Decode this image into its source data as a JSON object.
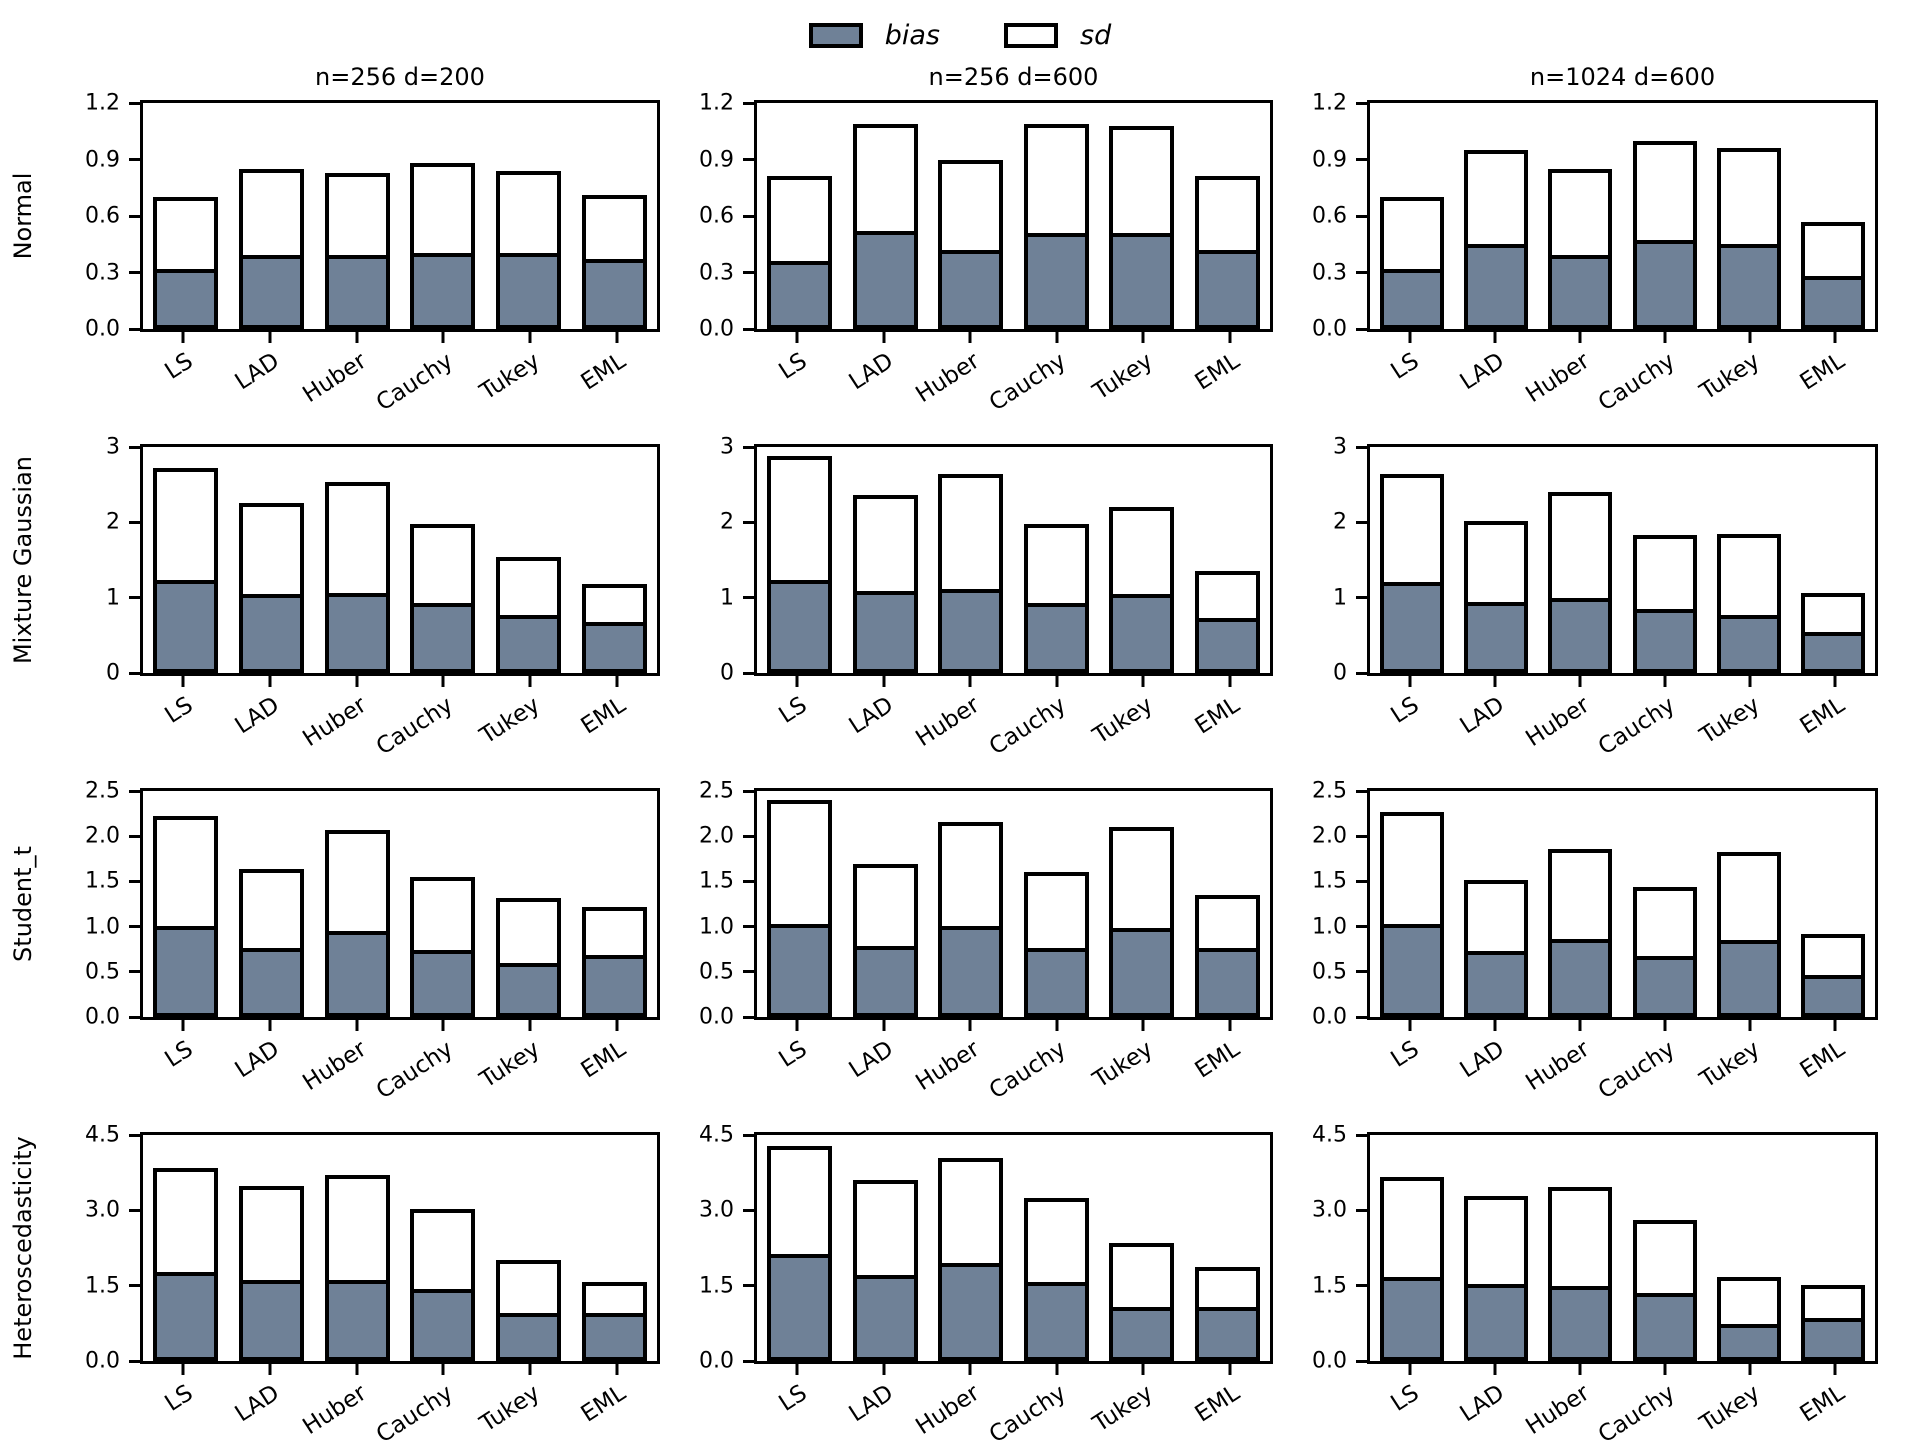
{
  "colors": {
    "bias_fill": "#6f8197",
    "sd_fill": "#ffffff",
    "edge": "#000000"
  },
  "legend": {
    "items": [
      {
        "label": "bias",
        "swatch": "bias"
      },
      {
        "label": "sd",
        "swatch": "sd"
      }
    ]
  },
  "chart_data": {
    "type": "bar",
    "stacked": true,
    "grid": "4 rows x 3 cols of stacked bar subplots",
    "legend_position": "top center",
    "categories": [
      "LS",
      "LAD",
      "Huber",
      "Cauchy",
      "Tukey",
      "EML"
    ],
    "col_titles": [
      "n=256 d=200",
      "n=256 d=600",
      "n=1024 d=600"
    ],
    "row_labels": [
      "Normal",
      "Mixture Gaussian",
      "Student_t",
      "Heteroscedasticity"
    ],
    "rows": [
      {
        "label": "Normal",
        "ylim": [
          0,
          1.2
        ],
        "yticks": [
          "0.0",
          "0.3",
          "0.6",
          "0.9",
          "1.2"
        ],
        "subplots": [
          {
            "col_title": "n=256 d=200",
            "bias": [
              0.3,
              0.37,
              0.37,
              0.38,
              0.38,
              0.35
            ],
            "sd": [
              0.4,
              0.48,
              0.46,
              0.5,
              0.46,
              0.36
            ]
          },
          {
            "col_title": "n=256 d=600",
            "bias": [
              0.34,
              0.5,
              0.4,
              0.49,
              0.49,
              0.4
            ],
            "sd": [
              0.47,
              0.59,
              0.5,
              0.6,
              0.59,
              0.41
            ]
          },
          {
            "col_title": "n=1024 d=600",
            "bias": [
              0.3,
              0.43,
              0.37,
              0.45,
              0.43,
              0.26
            ],
            "sd": [
              0.4,
              0.52,
              0.48,
              0.55,
              0.53,
              0.31
            ]
          }
        ]
      },
      {
        "label": "Mixture Gaussian",
        "ylim": [
          0,
          3
        ],
        "yticks": [
          "0",
          "1",
          "2",
          "3"
        ],
        "subplots": [
          {
            "col_title": "n=256 d=200",
            "bias": [
              1.18,
              1.0,
              1.01,
              0.87,
              0.72,
              0.62
            ],
            "sd": [
              1.54,
              1.26,
              1.52,
              1.11,
              0.82,
              0.56
            ]
          },
          {
            "col_title": "n=256 d=600",
            "bias": [
              1.18,
              1.04,
              1.06,
              0.88,
              1.0,
              0.68
            ],
            "sd": [
              1.7,
              1.32,
              1.58,
              1.1,
              1.2,
              0.67
            ]
          },
          {
            "col_title": "n=1024 d=600",
            "bias": [
              1.16,
              0.89,
              0.94,
              0.8,
              0.72,
              0.49
            ],
            "sd": [
              1.48,
              1.13,
              1.46,
              1.03,
              1.13,
              0.57
            ]
          }
        ]
      },
      {
        "label": "Student_t",
        "ylim": [
          0,
          2.5
        ],
        "yticks": [
          "0.0",
          "0.5",
          "1.0",
          "1.5",
          "2.0",
          "2.5"
        ],
        "subplots": [
          {
            "col_title": "n=256 d=200",
            "bias": [
              0.96,
              0.72,
              0.91,
              0.7,
              0.55,
              0.64
            ],
            "sd": [
              1.26,
              0.92,
              1.16,
              0.85,
              0.77,
              0.58
            ]
          },
          {
            "col_title": "n=256 d=600",
            "bias": [
              0.99,
              0.74,
              0.96,
              0.72,
              0.94,
              0.72
            ],
            "sd": [
              1.41,
              0.95,
              1.2,
              0.88,
              1.16,
              0.63
            ]
          },
          {
            "col_title": "n=1024 d=600",
            "bias": [
              0.98,
              0.69,
              0.82,
              0.63,
              0.81,
              0.42
            ],
            "sd": [
              1.29,
              0.83,
              1.04,
              0.81,
              1.01,
              0.5
            ]
          }
        ]
      },
      {
        "label": "Heteroscedasticity",
        "ylim": [
          0,
          4.5
        ],
        "yticks": [
          "0.0",
          "1.5",
          "3.0",
          "4.5"
        ],
        "subplots": [
          {
            "col_title": "n=256 d=200",
            "bias": [
              1.7,
              1.54,
              1.54,
              1.35,
              0.88,
              0.88
            ],
            "sd": [
              2.15,
              1.94,
              2.16,
              1.68,
              1.14,
              0.69
            ]
          },
          {
            "col_title": "n=256 d=600",
            "bias": [
              2.05,
              1.64,
              1.88,
              1.49,
              1.0,
              1.0
            ],
            "sd": [
              2.23,
              1.96,
              2.17,
              1.75,
              1.35,
              0.88
            ]
          },
          {
            "col_title": "n=1024 d=600",
            "bias": [
              1.6,
              1.45,
              1.42,
              1.27,
              0.65,
              0.78
            ],
            "sd": [
              2.07,
              1.83,
              2.05,
              1.53,
              1.03,
              0.73
            ]
          }
        ]
      }
    ]
  }
}
